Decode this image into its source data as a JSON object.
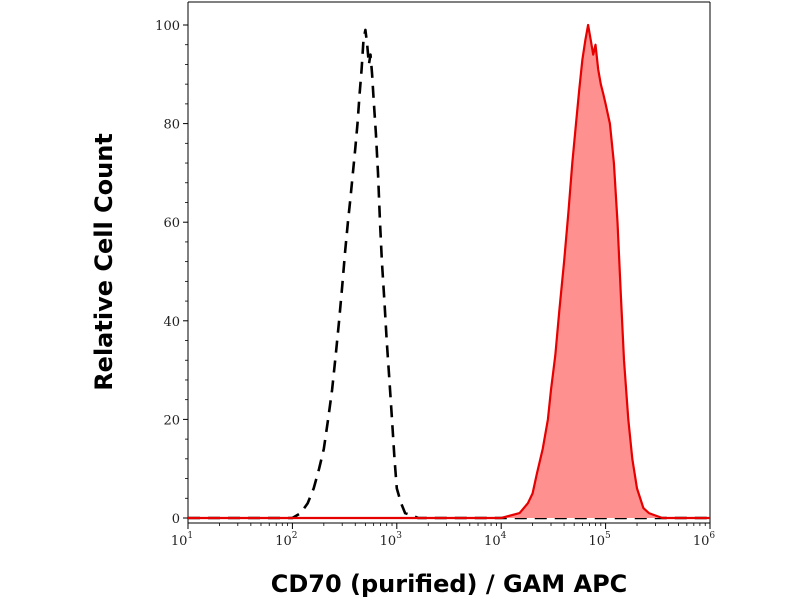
{
  "chart_data": {
    "type": "area",
    "title": "",
    "xlabel": "CD70 (purified) / GAM APC",
    "ylabel": "Relative Cell Count",
    "x_scale": "log",
    "xlim": [
      10,
      1000000
    ],
    "ylim": [
      0,
      100
    ],
    "grid": false,
    "legend": "none",
    "x_ticks": [
      {
        "base": "10",
        "exp": "1",
        "value": 10
      },
      {
        "base": "10",
        "exp": "2",
        "value": 100
      },
      {
        "base": "10",
        "exp": "3",
        "value": 1000
      },
      {
        "base": "10",
        "exp": "4",
        "value": 10000
      },
      {
        "base": "10",
        "exp": "5",
        "value": 100000
      },
      {
        "base": "10",
        "exp": "6",
        "value": 1000000
      }
    ],
    "y_ticks": [
      0,
      20,
      40,
      60,
      80,
      100
    ],
    "series": [
      {
        "style": "dashed-line",
        "color": "#000000",
        "x": [
          10,
          100,
          120,
          140,
          160,
          180,
          200,
          220,
          240,
          260,
          280,
          300,
          320,
          340,
          360,
          380,
          400,
          420,
          440,
          460,
          480,
          500,
          520,
          540,
          560,
          580,
          600,
          630,
          660,
          690,
          720,
          760,
          800,
          850,
          900,
          950,
          1000,
          1100,
          1200,
          1400,
          1600,
          2000,
          3000,
          1000000
        ],
        "y": [
          0,
          0,
          1,
          3,
          6,
          10,
          14,
          20,
          26,
          33,
          40,
          47,
          54,
          60,
          65,
          70,
          75,
          80,
          86,
          91,
          97,
          99,
          96,
          92,
          94,
          90,
          85,
          78,
          70,
          60,
          52,
          44,
          36,
          28,
          20,
          12,
          6,
          3,
          1,
          0.5,
          0,
          0,
          0,
          0
        ]
      },
      {
        "style": "filled",
        "color": "#e60000",
        "fill": "#ff9090",
        "x": [
          10,
          10000,
          15000,
          18000,
          20000,
          22000,
          25000,
          28000,
          30000,
          33000,
          36000,
          40000,
          44000,
          48000,
          52000,
          56000,
          60000,
          64000,
          68000,
          72000,
          76000,
          80000,
          85000,
          90000,
          95000,
          100000,
          110000,
          120000,
          130000,
          140000,
          150000,
          165000,
          180000,
          200000,
          230000,
          260000,
          300000,
          350000,
          400000,
          1000000
        ],
        "y": [
          0,
          0,
          1,
          3,
          5,
          9,
          14,
          20,
          26,
          33,
          42,
          52,
          62,
          72,
          80,
          87,
          93,
          97,
          100,
          97,
          94,
          96,
          91,
          88,
          86,
          84,
          80,
          72,
          60,
          45,
          32,
          20,
          12,
          6,
          2,
          1,
          0.5,
          0,
          0,
          0
        ]
      }
    ]
  }
}
